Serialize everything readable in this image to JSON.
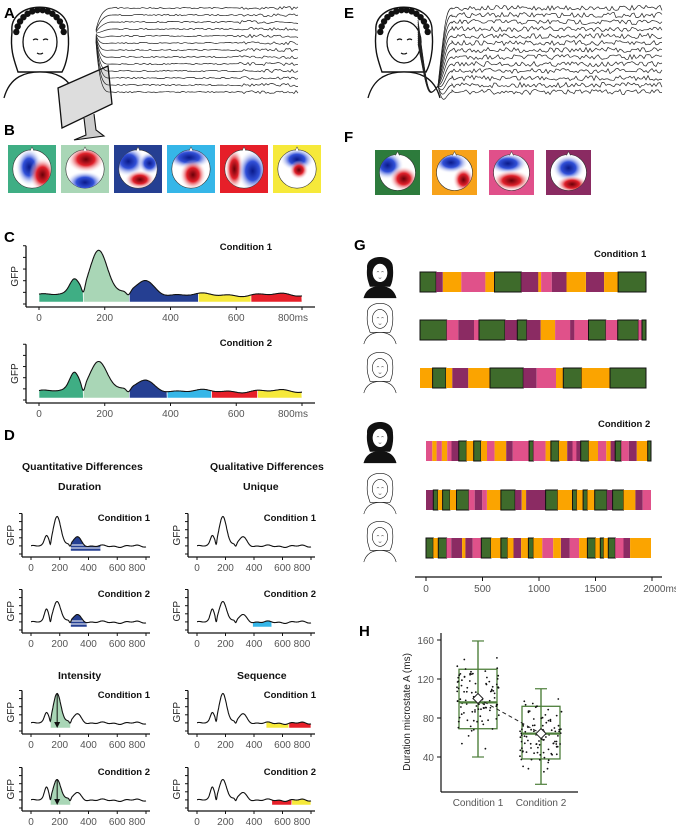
{
  "panels": {
    "A": "A",
    "B": "B",
    "C": "C",
    "D": "D",
    "E": "E",
    "F": "F",
    "G": "G",
    "H": "H"
  },
  "colors": {
    "A": "#3fae84",
    "B": "#a9d6b6",
    "C": "#253f92",
    "D": "#f6e93a",
    "E": "#e61f29",
    "F": "#35b6e8",
    "g_green": "#3e6b2b",
    "g_purple": "#8b2b63",
    "g_pink": "#e0518a",
    "g_orange": "#fba400",
    "f_green": "#2d7b3c",
    "f_orange": "#f7a21a",
    "f_pink": "#e0508a",
    "f_purple": "#8a2b62"
  },
  "C": {
    "ylabel": "GFP",
    "xticks": [
      "0",
      "200",
      "400",
      "600",
      "800ms"
    ],
    "charts": [
      {
        "title": "Condition 1",
        "segments": [
          [
            0,
            135,
            "A"
          ],
          [
            135,
            275,
            "B"
          ],
          [
            275,
            485,
            "C"
          ],
          [
            485,
            645,
            "D"
          ],
          [
            645,
            800,
            "E"
          ]
        ]
      },
      {
        "title": "Condition 2",
        "segments": [
          [
            0,
            135,
            "A"
          ],
          [
            135,
            275,
            "B"
          ],
          [
            275,
            390,
            "C"
          ],
          [
            390,
            525,
            "F"
          ],
          [
            525,
            665,
            "E"
          ],
          [
            665,
            800,
            "D"
          ]
        ]
      }
    ]
  },
  "D": {
    "quant_heading": "Quantitative Differences",
    "qual_heading": "Qualitative Differences",
    "subtitles": [
      "Duration",
      "Unique",
      "Intensity",
      "Sequence"
    ],
    "ylabel": "GFP",
    "xticks": [
      "0",
      "200",
      "400",
      "600",
      "800"
    ],
    "charts": [
      {
        "group": "Duration",
        "title": "Condition 1",
        "segments": [
          [
            275,
            485,
            "C"
          ]
        ],
        "mark": "duration"
      },
      {
        "group": "Duration",
        "title": "Condition 2",
        "segments": [
          [
            275,
            390,
            "C"
          ]
        ],
        "mark": "duration"
      },
      {
        "group": "Unique",
        "title": "Condition 1",
        "segments": []
      },
      {
        "group": "Unique",
        "title": "Condition 2",
        "segments": [
          [
            390,
            525,
            "F"
          ]
        ]
      },
      {
        "group": "Intensity",
        "title": "Condition 1",
        "segments": [
          [
            135,
            275,
            "B"
          ]
        ],
        "mark": "intensity"
      },
      {
        "group": "Intensity",
        "title": "Condition 2",
        "segments": [
          [
            135,
            275,
            "B"
          ]
        ],
        "mark": "intensity"
      },
      {
        "group": "Sequence",
        "title": "Condition 1",
        "segments": [
          [
            485,
            645,
            "D"
          ],
          [
            645,
            800,
            "E"
          ]
        ]
      },
      {
        "group": "Sequence",
        "title": "Condition 2",
        "segments": [
          [
            525,
            665,
            "E"
          ],
          [
            665,
            800,
            "D"
          ]
        ]
      }
    ]
  },
  "G": {
    "cond1_title": "Condition 1",
    "cond2_title": "Condition 2",
    "xticks": [
      "0",
      "500",
      "1000",
      "1500",
      "2000ms"
    ],
    "rows": [
      {
        "condition": 1,
        "segments": [
          [
            "G",
            142
          ],
          [
            "P",
            59
          ],
          [
            "O",
            162
          ],
          [
            "K",
            212
          ],
          [
            "O",
            80
          ],
          [
            "G",
            236
          ],
          [
            "P",
            150
          ],
          [
            "O",
            24
          ],
          [
            "K",
            94
          ],
          [
            "P",
            130
          ],
          [
            "O",
            171
          ],
          [
            "P",
            159
          ],
          [
            "O",
            124
          ],
          [
            "G",
            245
          ]
        ]
      },
      {
        "condition": 1,
        "segments": [
          [
            "G",
            236
          ],
          [
            "K",
            103
          ],
          [
            "P",
            139
          ],
          [
            "K",
            44
          ],
          [
            "G",
            230
          ],
          [
            "P",
            109
          ],
          [
            "G",
            83
          ],
          [
            "P",
            124
          ],
          [
            "O",
            127
          ],
          [
            "K",
            133
          ],
          [
            "P",
            38
          ],
          [
            "K",
            124
          ],
          [
            "G",
            153
          ],
          [
            "K",
            106
          ],
          [
            "G",
            183
          ],
          [
            "K",
            32
          ],
          [
            "G",
            35
          ]
        ]
      },
      {
        "condition": 1,
        "segments": [
          [
            "O",
            112
          ],
          [
            "G",
            118
          ],
          [
            "O",
            56
          ],
          [
            "P",
            142
          ],
          [
            "O",
            192
          ],
          [
            "G",
            295
          ],
          [
            "P",
            118
          ],
          [
            "K",
            171
          ],
          [
            "O",
            65
          ],
          [
            "G",
            162
          ],
          [
            "O",
            251
          ],
          [
            "G",
            319
          ]
        ]
      },
      {
        "condition": 2,
        "segments": [
          [
            "K",
            57
          ],
          [
            "O",
            39
          ],
          [
            "K",
            48
          ],
          [
            "O",
            48
          ],
          [
            "K",
            39
          ],
          [
            "P",
            66
          ],
          [
            "G",
            69
          ],
          [
            "O",
            66
          ],
          [
            "G",
            66
          ],
          [
            "O",
            54
          ],
          [
            "K",
            69
          ],
          [
            "O",
            105
          ],
          [
            "P",
            60
          ],
          [
            "K",
            147
          ],
          [
            "G",
            39
          ],
          [
            "K",
            111
          ],
          [
            "O",
            48
          ],
          [
            "G",
            72
          ],
          [
            "O",
            75
          ],
          [
            "P",
            48
          ],
          [
            "K",
            36
          ],
          [
            "P",
            39
          ],
          [
            "G",
            72
          ],
          [
            "O",
            84
          ],
          [
            "K",
            75
          ],
          [
            "O",
            39
          ],
          [
            "P",
            42
          ],
          [
            "G",
            54
          ],
          [
            "K",
            69
          ],
          [
            "P",
            72
          ],
          [
            "O",
            99
          ],
          [
            "G",
            30
          ]
        ]
      },
      {
        "condition": 2,
        "segments": [
          [
            "P",
            66
          ],
          [
            "G",
            42
          ],
          [
            "O",
            42
          ],
          [
            "G",
            66
          ],
          [
            "O",
            60
          ],
          [
            "G",
            111
          ],
          [
            "K",
            54
          ],
          [
            "P",
            69
          ],
          [
            "K",
            42
          ],
          [
            "O",
            126
          ],
          [
            "G",
            129
          ],
          [
            "P",
            60
          ],
          [
            "O",
            39
          ],
          [
            "P",
            177
          ],
          [
            "G",
            108
          ],
          [
            "O",
            135
          ],
          [
            "G",
            39
          ],
          [
            "O",
            57
          ],
          [
            "G",
            39
          ],
          [
            "O",
            66
          ],
          [
            "G",
            111
          ],
          [
            "P",
            51
          ],
          [
            "G",
            99
          ],
          [
            "O",
            108
          ],
          [
            "P",
            66
          ],
          [
            "K",
            75
          ]
        ]
      },
      {
        "condition": 2,
        "segments": [
          [
            "G",
            66
          ],
          [
            "O",
            45
          ],
          [
            "G",
            75
          ],
          [
            "K",
            42
          ],
          [
            "P",
            99
          ],
          [
            "O",
            30
          ],
          [
            "P",
            66
          ],
          [
            "K",
            78
          ],
          [
            "G",
            87
          ],
          [
            "O",
            90
          ],
          [
            "G",
            60
          ],
          [
            "O",
            54
          ],
          [
            "P",
            69
          ],
          [
            "O",
            66
          ],
          [
            "G",
            45
          ],
          [
            "O",
            81
          ],
          [
            "K",
            99
          ],
          [
            "O",
            69
          ],
          [
            "P",
            81
          ],
          [
            "K",
            84
          ],
          [
            "O",
            75
          ],
          [
            "G",
            72
          ],
          [
            "O",
            45
          ],
          [
            "G",
            30
          ],
          [
            "O",
            42
          ],
          [
            "G",
            63
          ],
          [
            "K",
            75
          ],
          [
            "P",
            60
          ],
          [
            "O",
            189
          ]
        ]
      }
    ]
  },
  "chart_data": {
    "type": "box",
    "title": "",
    "xlabel": "",
    "ylabel": "Duration microstate A (ms)",
    "categories": [
      "Condition 1",
      "Condition 2"
    ],
    "yticks": [
      "40",
      "80",
      "120",
      "160"
    ],
    "ylim": [
      0,
      165
    ],
    "series": [
      {
        "name": "Condition 1",
        "whisker_low": 40,
        "q1": 69,
        "median": 96,
        "q3": 130,
        "whisker_high": 159,
        "mean": 100,
        "n_points": 100
      },
      {
        "name": "Condition 2",
        "whisker_low": 12,
        "q1": 38,
        "median": 64,
        "q3": 92,
        "whisker_high": 110,
        "mean": 64,
        "n_points": 100
      }
    ],
    "box_color": "#4e7f3b"
  }
}
